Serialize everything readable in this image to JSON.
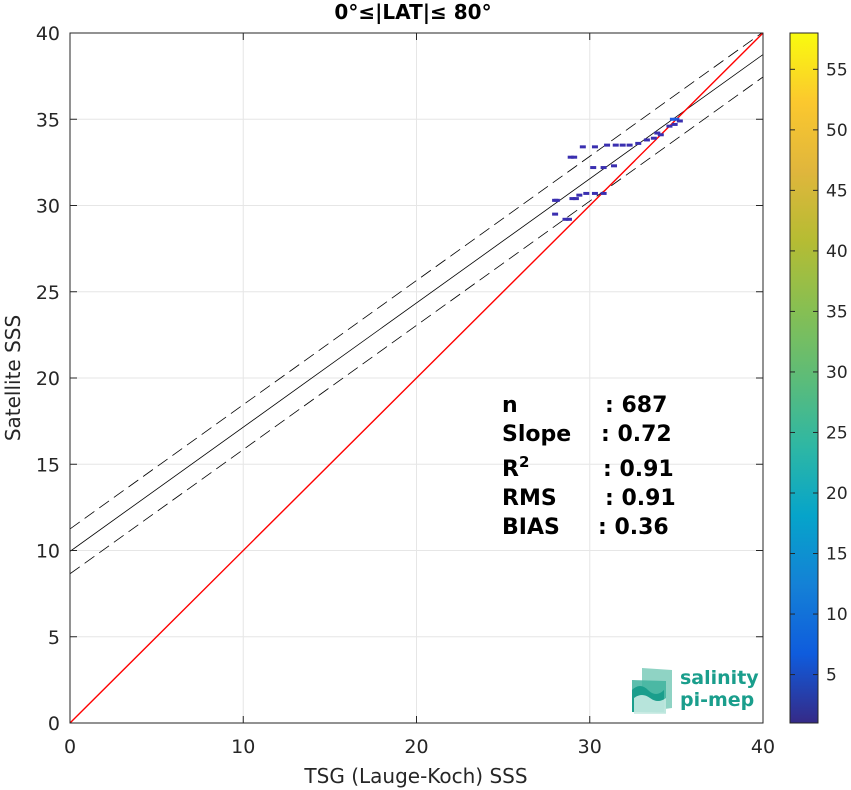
{
  "chart_data": {
    "type": "scatter",
    "title": "0°≤|LAT|≤ 80°",
    "xlabel": "TSG (Lauge-Koch) SSS",
    "ylabel": "Satellite SSS",
    "xlim": [
      0,
      40
    ],
    "ylim": [
      0,
      40
    ],
    "x_ticks": [
      0,
      10,
      20,
      30,
      40
    ],
    "y_ticks": [
      0,
      5,
      10,
      15,
      20,
      25,
      30,
      35,
      40
    ],
    "grid": true,
    "reference_line": {
      "type": "1:1",
      "color": "#ff0000"
    },
    "regression_line": {
      "intercept": 9.95,
      "slope": 0.72,
      "color": "#000000"
    },
    "confidence_band": {
      "offset": 1.3,
      "style": "dashed",
      "color": "#000000"
    },
    "colorbar": {
      "min": 1,
      "max": 58,
      "ticks": [
        5,
        10,
        15,
        20,
        25,
        30,
        35,
        40,
        45,
        50,
        55
      ],
      "colormap": "parula"
    },
    "stats": [
      {
        "label": "n",
        "value": ": 687"
      },
      {
        "label": "Slope",
        "value": ": 0.72"
      },
      {
        "label": "R",
        "sup": "2",
        "value": ": 0.91"
      },
      {
        "label": "RMS",
        "value": ": 0.91"
      },
      {
        "label": "BIAS",
        "value": ": 0.36"
      }
    ],
    "points": [
      {
        "x": 28.0,
        "y": 30.3,
        "c": 3
      },
      {
        "x": 28.1,
        "y": 30.3,
        "c": 2
      },
      {
        "x": 28.0,
        "y": 29.5,
        "c": 2
      },
      {
        "x": 28.6,
        "y": 29.2,
        "c": 2
      },
      {
        "x": 28.8,
        "y": 29.2,
        "c": 1
      },
      {
        "x": 29.0,
        "y": 30.4,
        "c": 3
      },
      {
        "x": 29.2,
        "y": 30.4,
        "c": 4
      },
      {
        "x": 29.4,
        "y": 30.6,
        "c": 2
      },
      {
        "x": 29.8,
        "y": 30.7,
        "c": 2
      },
      {
        "x": 30.3,
        "y": 30.7,
        "c": 1
      },
      {
        "x": 30.8,
        "y": 30.7,
        "c": 2
      },
      {
        "x": 28.9,
        "y": 32.8,
        "c": 4
      },
      {
        "x": 29.1,
        "y": 32.8,
        "c": 3
      },
      {
        "x": 29.6,
        "y": 33.4,
        "c": 1
      },
      {
        "x": 30.3,
        "y": 33.4,
        "c": 1
      },
      {
        "x": 31.0,
        "y": 33.5,
        "c": 2
      },
      {
        "x": 31.5,
        "y": 33.5,
        "c": 3
      },
      {
        "x": 31.9,
        "y": 33.5,
        "c": 4
      },
      {
        "x": 32.3,
        "y": 33.5,
        "c": 3
      },
      {
        "x": 30.2,
        "y": 32.2,
        "c": 1
      },
      {
        "x": 30.8,
        "y": 32.2,
        "c": 1
      },
      {
        "x": 31.4,
        "y": 32.3,
        "c": 1
      },
      {
        "x": 32.8,
        "y": 33.6,
        "c": 2
      },
      {
        "x": 33.3,
        "y": 33.8,
        "c": 3
      },
      {
        "x": 33.7,
        "y": 33.9,
        "c": 5
      },
      {
        "x": 33.9,
        "y": 34.2,
        "c": 8
      },
      {
        "x": 34.1,
        "y": 34.1,
        "c": 6
      },
      {
        "x": 34.6,
        "y": 34.6,
        "c": 7
      },
      {
        "x": 34.8,
        "y": 35.0,
        "c": 10
      },
      {
        "x": 35.0,
        "y": 35.0,
        "c": 12
      },
      {
        "x": 35.2,
        "y": 34.9,
        "c": 6
      },
      {
        "x": 34.9,
        "y": 34.7,
        "c": 8
      }
    ]
  },
  "logo": {
    "line1": "salinity",
    "line2": "pi-mep"
  }
}
